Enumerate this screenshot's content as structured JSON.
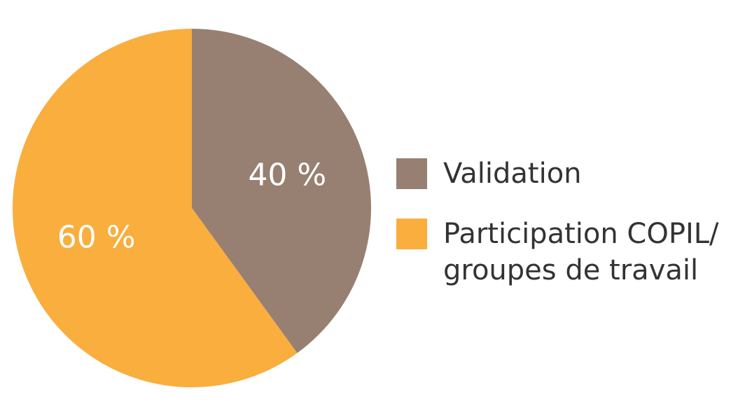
{
  "chart_data": {
    "type": "pie",
    "categories": [
      "Validation",
      "Participation COPIL/\ngroupes de travail"
    ],
    "values": [
      40,
      60
    ],
    "value_labels": [
      "40 %",
      "60 %"
    ],
    "colors": [
      "#978072",
      "#f9ae3d"
    ]
  }
}
